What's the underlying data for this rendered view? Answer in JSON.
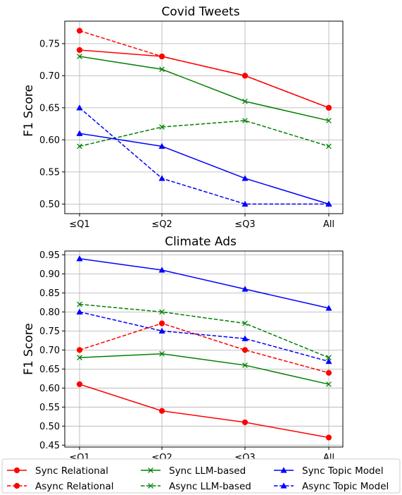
{
  "chart_data": [
    {
      "type": "line",
      "title": "Covid Tweets",
      "xlabel": "",
      "ylabel": "F1 Score",
      "categories": [
        "≤Q1",
        "≤Q2",
        "≤Q3",
        "All"
      ],
      "ylim": [
        0.485,
        0.785
      ],
      "yticks": [
        0.5,
        0.55,
        0.6,
        0.65,
        0.7,
        0.75
      ],
      "ytick_labels": [
        "0.50",
        "0.55",
        "0.60",
        "0.65",
        "0.70",
        "0.75"
      ],
      "grid": true,
      "series": [
        {
          "name": "Sync Relational",
          "color": "#ff0000",
          "dashed": false,
          "marker": "circle",
          "values": [
            0.74,
            0.73,
            0.7,
            0.65
          ]
        },
        {
          "name": "Async Relational",
          "color": "#ff0000",
          "dashed": true,
          "marker": "circle",
          "values": [
            0.77,
            0.73,
            0.7,
            0.65
          ]
        },
        {
          "name": "Sync LLM-based",
          "color": "#008000",
          "dashed": false,
          "marker": "x",
          "values": [
            0.73,
            0.71,
            0.66,
            0.63
          ]
        },
        {
          "name": "Async LLM-based",
          "color": "#008000",
          "dashed": true,
          "marker": "x",
          "values": [
            0.59,
            0.62,
            0.63,
            0.59
          ]
        },
        {
          "name": "Sync Topic Model",
          "color": "#0000ff",
          "dashed": false,
          "marker": "triangle",
          "values": [
            0.61,
            0.59,
            0.54,
            0.5
          ]
        },
        {
          "name": "Async Topic Model",
          "color": "#0000ff",
          "dashed": true,
          "marker": "triangle",
          "values": [
            0.65,
            0.54,
            0.5,
            0.5
          ]
        }
      ]
    },
    {
      "type": "line",
      "title": "Climate Ads",
      "xlabel": "",
      "ylabel": "F1 Score",
      "categories": [
        "≤Q1",
        "≤Q2",
        "≤Q3",
        "All"
      ],
      "ylim": [
        0.445,
        0.96
      ],
      "yticks": [
        0.45,
        0.5,
        0.55,
        0.6,
        0.65,
        0.7,
        0.75,
        0.8,
        0.85,
        0.9,
        0.95
      ],
      "ytick_labels": [
        "0.45",
        "0.50",
        "0.55",
        "0.60",
        "0.65",
        "0.70",
        "0.75",
        "0.80",
        "0.85",
        "0.90",
        "0.95"
      ],
      "grid": true,
      "series": [
        {
          "name": "Sync Relational",
          "color": "#ff0000",
          "dashed": false,
          "marker": "circle",
          "values": [
            0.61,
            0.54,
            0.51,
            0.47
          ]
        },
        {
          "name": "Async Relational",
          "color": "#ff0000",
          "dashed": true,
          "marker": "circle",
          "values": [
            0.7,
            0.77,
            0.7,
            0.64
          ]
        },
        {
          "name": "Sync LLM-based",
          "color": "#008000",
          "dashed": false,
          "marker": "x",
          "values": [
            0.68,
            0.69,
            0.66,
            0.61
          ]
        },
        {
          "name": "Async LLM-based",
          "color": "#008000",
          "dashed": true,
          "marker": "x",
          "values": [
            0.82,
            0.8,
            0.77,
            0.68
          ]
        },
        {
          "name": "Sync Topic Model",
          "color": "#0000ff",
          "dashed": false,
          "marker": "triangle",
          "values": [
            0.94,
            0.91,
            0.86,
            0.81
          ]
        },
        {
          "name": "Async Topic Model",
          "color": "#0000ff",
          "dashed": true,
          "marker": "triangle",
          "values": [
            0.8,
            0.75,
            0.73,
            0.67
          ]
        }
      ]
    }
  ],
  "legend": {
    "placement": "bottom",
    "entries": [
      {
        "label": "Sync Relational",
        "color": "#ff0000",
        "dashed": false,
        "marker": "circle"
      },
      {
        "label": "Async Relational",
        "color": "#ff0000",
        "dashed": true,
        "marker": "circle"
      },
      {
        "label": "Sync LLM-based",
        "color": "#008000",
        "dashed": false,
        "marker": "x"
      },
      {
        "label": "Async LLM-based",
        "color": "#008000",
        "dashed": true,
        "marker": "x"
      },
      {
        "label": "Sync Topic Model",
        "color": "#0000ff",
        "dashed": false,
        "marker": "triangle"
      },
      {
        "label": "Async Topic Model",
        "color": "#0000ff",
        "dashed": true,
        "marker": "triangle"
      }
    ]
  }
}
